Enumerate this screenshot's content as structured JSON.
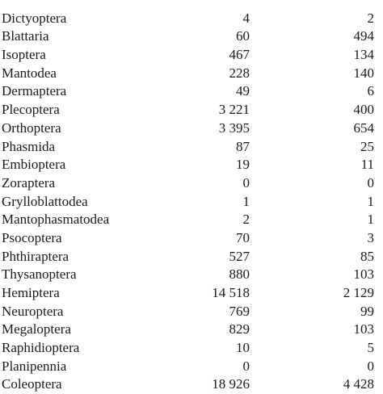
{
  "table": {
    "header": {
      "name": "",
      "col1": "",
      "col2": ""
    },
    "rows": [
      {
        "name": "Dictyoptera",
        "col1": "4",
        "col2": "2"
      },
      {
        "name": "Blattaria",
        "col1": "60",
        "col2": "494"
      },
      {
        "name": "Isoptera",
        "col1": "467",
        "col2": "134"
      },
      {
        "name": "Mantodea",
        "col1": "228",
        "col2": "140"
      },
      {
        "name": "Dermaptera",
        "col1": "49",
        "col2": "6"
      },
      {
        "name": "Plecoptera",
        "col1": "3 221",
        "col2": "400"
      },
      {
        "name": "Orthoptera",
        "col1": "3 395",
        "col2": "654"
      },
      {
        "name": "Phasmida",
        "col1": "87",
        "col2": "25"
      },
      {
        "name": "Embioptera",
        "col1": "19",
        "col2": "11"
      },
      {
        "name": "Zoraptera",
        "col1": "0",
        "col2": "0"
      },
      {
        "name": "Grylloblattodea",
        "col1": "1",
        "col2": "1"
      },
      {
        "name": "Mantophasmatodea",
        "col1": "2",
        "col2": "1"
      },
      {
        "name": "Psocoptera",
        "col1": "70",
        "col2": "3"
      },
      {
        "name": "Phthiraptera",
        "col1": "527",
        "col2": "85"
      },
      {
        "name": "Thysanoptera",
        "col1": "880",
        "col2": "103"
      },
      {
        "name": "Hemiptera",
        "col1": "14 518",
        "col2": "2 129"
      },
      {
        "name": "Neuroptera",
        "col1": "769",
        "col2": "99"
      },
      {
        "name": "Megaloptera",
        "col1": "829",
        "col2": "103"
      },
      {
        "name": "Raphidioptera",
        "col1": "10",
        "col2": "5"
      },
      {
        "name": "Planipennia",
        "col1": "0",
        "col2": "0"
      },
      {
        "name": "Coleoptera",
        "col1": "18 926",
        "col2": "4 428"
      }
    ]
  }
}
